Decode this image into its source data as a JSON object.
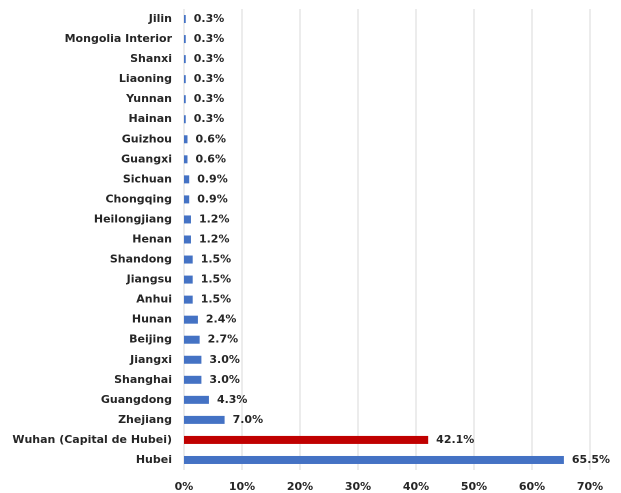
{
  "chart_data": {
    "type": "hbar",
    "categories": [
      "Jilin",
      "Mongolia Interior",
      "Shanxi",
      "Liaoning",
      "Yunnan",
      "Hainan",
      "Guizhou",
      "Guangxi",
      "Sichuan",
      "Chongqing",
      "Heilongjiang",
      "Henan",
      "Shandong",
      "Jiangsu",
      "Anhui",
      "Hunan",
      "Beijing",
      "Jiangxi",
      "Shanghai",
      "Guangdong",
      "Zhejiang",
      "Wuhan (Capital de Hubei)",
      "Hubei"
    ],
    "values": [
      0.3,
      0.3,
      0.3,
      0.3,
      0.3,
      0.3,
      0.6,
      0.6,
      0.9,
      0.9,
      1.2,
      1.2,
      1.5,
      1.5,
      1.5,
      2.4,
      2.7,
      3.0,
      3.0,
      4.3,
      7.0,
      42.1,
      65.5
    ],
    "value_labels": [
      "0.3%",
      "0.3%",
      "0.3%",
      "0.3%",
      "0.3%",
      "0.3%",
      "0.6%",
      "0.6%",
      "0.9%",
      "0.9%",
      "1.2%",
      "1.2%",
      "1.5%",
      "1.5%",
      "1.5%",
      "2.4%",
      "2.7%",
      "3.0%",
      "3.0%",
      "4.3%",
      "7.0%",
      "42.1%",
      "65.5%"
    ],
    "colors": [
      "#4472c4",
      "#4472c4",
      "#4472c4",
      "#4472c4",
      "#4472c4",
      "#4472c4",
      "#4472c4",
      "#4472c4",
      "#4472c4",
      "#4472c4",
      "#4472c4",
      "#4472c4",
      "#4472c4",
      "#4472c4",
      "#4472c4",
      "#4472c4",
      "#4472c4",
      "#4472c4",
      "#4472c4",
      "#4472c4",
      "#4472c4",
      "#c00000",
      "#4472c4"
    ],
    "xlim": [
      0,
      70
    ],
    "xticks": [
      {
        "value": 0,
        "label": "0%"
      },
      {
        "value": 10,
        "label": "10%"
      },
      {
        "value": 20,
        "label": "20%"
      },
      {
        "value": 30,
        "label": "30%"
      },
      {
        "value": 40,
        "label": "40%"
      },
      {
        "value": 50,
        "label": "50%"
      },
      {
        "value": 60,
        "label": "60%"
      },
      {
        "value": 70,
        "label": "70%"
      }
    ],
    "grid": true
  }
}
